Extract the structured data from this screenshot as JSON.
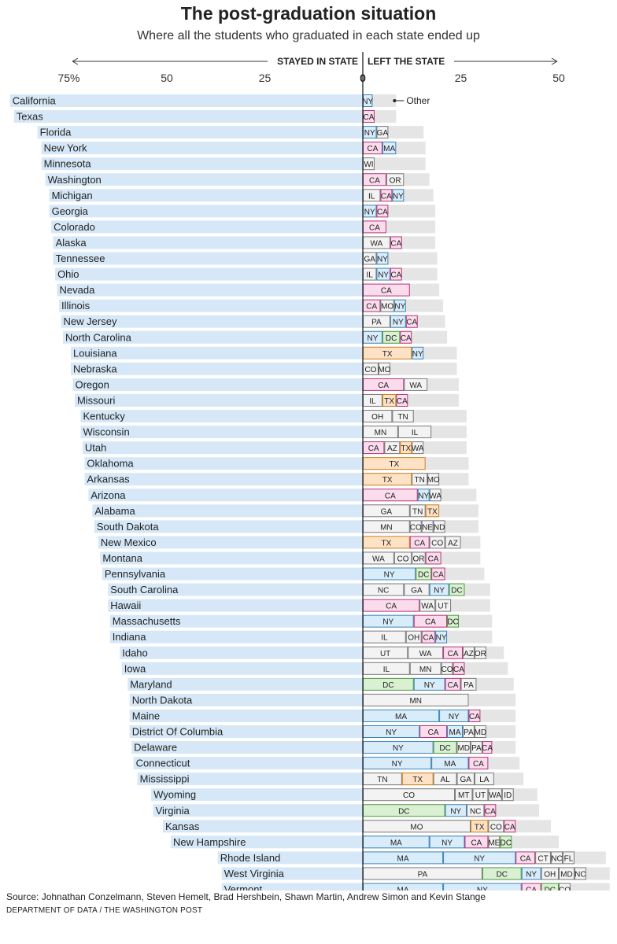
{
  "title": "The post-graduation situation",
  "subtitle": "Where all the students who graduated in each state ended up",
  "source": "Source: Johnathan Conzelmann, Steven Hemelt, Brad Hershbein, Shawn Martin, Andrew Simon and Kevin Stange",
  "credit": "DEPARTMENT OF DATA / THE WASHINGTON POST",
  "colors": {
    "stayed": "#d6e8f7",
    "other": "#e5e5e5",
    "NY": "#d9ecfa",
    "CA": "#fbdcec",
    "DC": "#d9f0d2",
    "TX": "#fde2c6",
    "MA": "#d9ecfa",
    "default": "#f3f3f3",
    "NY_border": "#3c84b8",
    "CA_border": "#b5357e",
    "DC_border": "#4f9a3e",
    "TX_border": "#d17d1a",
    "MA_border": "#3c84b8",
    "default_border": "#7a7a7a"
  },
  "chart_data": {
    "type": "bar",
    "orientation": "diverging-horizontal",
    "xlabel_left": "STAYED IN STATE",
    "xlabel_right": "LEFT THE STATE",
    "ticks_left": [
      "75%",
      "50",
      "25"
    ],
    "tick_zero": "0",
    "ticks_right": [
      "25",
      "50"
    ],
    "xlim_left": [
      0,
      90
    ],
    "xlim_right": [
      0,
      63
    ],
    "other_label": "Other",
    "rows": [
      {
        "state": "California",
        "stayed": 90,
        "left": 8.5,
        "segments": [
          {
            "label": "NY",
            "value": 2.5
          }
        ]
      },
      {
        "state": "Texas",
        "stayed": 89,
        "left": 8.5,
        "segments": [
          {
            "label": "CA",
            "value": 3
          }
        ]
      },
      {
        "state": "Florida",
        "stayed": 83,
        "left": 15.5,
        "segments": [
          {
            "label": "NY",
            "value": 3.5
          },
          {
            "label": "GA",
            "value": 3
          }
        ]
      },
      {
        "state": "New York",
        "stayed": 82,
        "left": 16,
        "segments": [
          {
            "label": "CA",
            "value": 5
          },
          {
            "label": "MA",
            "value": 3.5
          }
        ]
      },
      {
        "state": "Minnesota",
        "stayed": 82,
        "left": 16,
        "segments": [
          {
            "label": "WI",
            "value": 3
          }
        ]
      },
      {
        "state": "Washington",
        "stayed": 81,
        "left": 17,
        "segments": [
          {
            "label": "CA",
            "value": 6
          },
          {
            "label": "OR",
            "value": 4.5
          }
        ]
      },
      {
        "state": "Michigan",
        "stayed": 80,
        "left": 18,
        "segments": [
          {
            "label": "IL",
            "value": 4.5
          },
          {
            "label": "CA",
            "value": 3
          },
          {
            "label": "NY",
            "value": 3
          }
        ]
      },
      {
        "state": "Georgia",
        "stayed": 80,
        "left": 18.5,
        "segments": [
          {
            "label": "NY",
            "value": 3.5
          },
          {
            "label": "CA",
            "value": 3
          }
        ]
      },
      {
        "state": "Colorado",
        "stayed": 79.5,
        "left": 18.5,
        "segments": [
          {
            "label": "CA",
            "value": 6
          }
        ]
      },
      {
        "state": "Alaska",
        "stayed": 79,
        "left": 18.5,
        "segments": [
          {
            "label": "WA",
            "value": 7
          },
          {
            "label": "CA",
            "value": 3
          }
        ]
      },
      {
        "state": "Tennessee",
        "stayed": 79,
        "left": 19,
        "segments": [
          {
            "label": "GA",
            "value": 3.5
          },
          {
            "label": "NY",
            "value": 3
          }
        ]
      },
      {
        "state": "Ohio",
        "stayed": 78.5,
        "left": 19,
        "segments": [
          {
            "label": "IL",
            "value": 3.5
          },
          {
            "label": "NY",
            "value": 3.5
          },
          {
            "label": "CA",
            "value": 3
          }
        ]
      },
      {
        "state": "Nevada",
        "stayed": 78,
        "left": 19.5,
        "segments": [
          {
            "label": "CA",
            "value": 12
          }
        ]
      },
      {
        "state": "Illinois",
        "stayed": 77.5,
        "left": 20.5,
        "segments": [
          {
            "label": "CA",
            "value": 4.5
          },
          {
            "label": "MO",
            "value": 3.5
          },
          {
            "label": "NY",
            "value": 3
          }
        ]
      },
      {
        "state": "New Jersey",
        "stayed": 77,
        "left": 21,
        "segments": [
          {
            "label": "PA",
            "value": 7
          },
          {
            "label": "NY",
            "value": 4
          },
          {
            "label": "CA",
            "value": 3
          }
        ]
      },
      {
        "state": "North Carolina",
        "stayed": 76.5,
        "left": 21.5,
        "segments": [
          {
            "label": "NY",
            "value": 5
          },
          {
            "label": "DC",
            "value": 4.5
          },
          {
            "label": "CA",
            "value": 3
          }
        ]
      },
      {
        "state": "Louisiana",
        "stayed": 74.5,
        "left": 24,
        "segments": [
          {
            "label": "TX",
            "value": 12.5
          },
          {
            "label": "NY",
            "value": 3
          }
        ]
      },
      {
        "state": "Nebraska",
        "stayed": 74.5,
        "left": 24,
        "segments": [
          {
            "label": "CO",
            "value": 4
          },
          {
            "label": "MO",
            "value": 3
          }
        ]
      },
      {
        "state": "Oregon",
        "stayed": 74,
        "left": 24.5,
        "segments": [
          {
            "label": "CA",
            "value": 10.5
          },
          {
            "label": "WA",
            "value": 6
          }
        ]
      },
      {
        "state": "Missouri",
        "stayed": 73.5,
        "left": 24.5,
        "segments": [
          {
            "label": "IL",
            "value": 5
          },
          {
            "label": "TX",
            "value": 3.5
          },
          {
            "label": "CA",
            "value": 3
          }
        ]
      },
      {
        "state": "Kentucky",
        "stayed": 72,
        "left": 26.5,
        "segments": [
          {
            "label": "OH",
            "value": 7.5
          },
          {
            "label": "TN",
            "value": 5.5
          }
        ]
      },
      {
        "state": "Wisconsin",
        "stayed": 72,
        "left": 26.5,
        "segments": [
          {
            "label": "MN",
            "value": 9
          },
          {
            "label": "IL",
            "value": 8.5
          }
        ]
      },
      {
        "state": "Utah",
        "stayed": 71.5,
        "left": 26.5,
        "segments": [
          {
            "label": "CA",
            "value": 5.5
          },
          {
            "label": "AZ",
            "value": 4
          },
          {
            "label": "TX",
            "value": 3
          },
          {
            "label": "WA",
            "value": 3
          }
        ]
      },
      {
        "state": "Oklahoma",
        "stayed": 71,
        "left": 27,
        "segments": [
          {
            "label": "TX",
            "value": 16
          }
        ]
      },
      {
        "state": "Arkansas",
        "stayed": 71,
        "left": 27,
        "segments": [
          {
            "label": "TX",
            "value": 12.5
          },
          {
            "label": "TN",
            "value": 4
          },
          {
            "label": "MO",
            "value": 3
          }
        ]
      },
      {
        "state": "Arizona",
        "stayed": 70,
        "left": 29,
        "segments": [
          {
            "label": "CA",
            "value": 14
          },
          {
            "label": "NY",
            "value": 3
          },
          {
            "label": "WA",
            "value": 3
          }
        ]
      },
      {
        "state": "Alabama",
        "stayed": 69,
        "left": 29.5,
        "segments": [
          {
            "label": "GA",
            "value": 12
          },
          {
            "label": "TN",
            "value": 4
          },
          {
            "label": "TX",
            "value": 3.5
          }
        ]
      },
      {
        "state": "South Dakota",
        "stayed": 68.5,
        "left": 29.5,
        "segments": [
          {
            "label": "MN",
            "value": 12
          },
          {
            "label": "CO",
            "value": 3
          },
          {
            "label": "NE",
            "value": 3
          },
          {
            "label": "ND",
            "value": 3
          }
        ]
      },
      {
        "state": "New Mexico",
        "stayed": 67.5,
        "left": 30,
        "segments": [
          {
            "label": "TX",
            "value": 12
          },
          {
            "label": "CA",
            "value": 5
          },
          {
            "label": "CO",
            "value": 4
          },
          {
            "label": "AZ",
            "value": 4
          }
        ]
      },
      {
        "state": "Montana",
        "stayed": 67,
        "left": 30,
        "segments": [
          {
            "label": "WA",
            "value": 8
          },
          {
            "label": "CO",
            "value": 4.5
          },
          {
            "label": "OR",
            "value": 3.5
          },
          {
            "label": "CA",
            "value": 4
          }
        ]
      },
      {
        "state": "Pennsylvania",
        "stayed": 66.5,
        "left": 31,
        "segments": [
          {
            "label": "NY",
            "value": 13.5
          },
          {
            "label": "DC",
            "value": 4
          },
          {
            "label": "CA",
            "value": 3.5
          }
        ]
      },
      {
        "state": "South Carolina",
        "stayed": 65,
        "left": 32.5,
        "segments": [
          {
            "label": "NC",
            "value": 10.5
          },
          {
            "label": "GA",
            "value": 6.5
          },
          {
            "label": "NY",
            "value": 5
          },
          {
            "label": "DC",
            "value": 4
          }
        ]
      },
      {
        "state": "Hawaii",
        "stayed": 65,
        "left": 32.5,
        "segments": [
          {
            "label": "CA",
            "value": 14.5
          },
          {
            "label": "WA",
            "value": 4
          },
          {
            "label": "UT",
            "value": 4
          }
        ]
      },
      {
        "state": "Massachusetts",
        "stayed": 64.5,
        "left": 33,
        "segments": [
          {
            "label": "NY",
            "value": 13
          },
          {
            "label": "CA",
            "value": 8.5
          },
          {
            "label": "DC",
            "value": 3
          }
        ]
      },
      {
        "state": "Indiana",
        "stayed": 64.5,
        "left": 33,
        "segments": [
          {
            "label": "IL",
            "value": 11
          },
          {
            "label": "OH",
            "value": 4
          },
          {
            "label": "CA",
            "value": 3.5
          },
          {
            "label": "NY",
            "value": 3
          }
        ]
      },
      {
        "state": "Idaho",
        "stayed": 62,
        "left": 36,
        "segments": [
          {
            "label": "UT",
            "value": 11.5
          },
          {
            "label": "WA",
            "value": 9
          },
          {
            "label": "CA",
            "value": 5
          },
          {
            "label": "AZ",
            "value": 3
          },
          {
            "label": "OR",
            "value": 3
          }
        ]
      },
      {
        "state": "Iowa",
        "stayed": 61.5,
        "left": 37,
        "segments": [
          {
            "label": "IL",
            "value": 12
          },
          {
            "label": "MN",
            "value": 8
          },
          {
            "label": "CO",
            "value": 3
          },
          {
            "label": "CA",
            "value": 3
          }
        ]
      },
      {
        "state": "Maryland",
        "stayed": 60,
        "left": 38.5,
        "segments": [
          {
            "label": "DC",
            "value": 13
          },
          {
            "label": "NY",
            "value": 8
          },
          {
            "label": "CA",
            "value": 4
          },
          {
            "label": "PA",
            "value": 4
          }
        ]
      },
      {
        "state": "North Dakota",
        "stayed": 59.5,
        "left": 39,
        "segments": [
          {
            "label": "MN",
            "value": 27
          }
        ]
      },
      {
        "state": "Maine",
        "stayed": 59.5,
        "left": 39,
        "segments": [
          {
            "label": "MA",
            "value": 19.5
          },
          {
            "label": "NY",
            "value": 7.5
          },
          {
            "label": "CA",
            "value": 3
          }
        ]
      },
      {
        "state": "District Of Columbia",
        "stayed": 59.5,
        "left": 39,
        "segments": [
          {
            "label": "NY",
            "value": 14.5
          },
          {
            "label": "CA",
            "value": 7
          },
          {
            "label": "MA",
            "value": 4
          },
          {
            "label": "PA",
            "value": 3
          },
          {
            "label": "MD",
            "value": 3
          }
        ]
      },
      {
        "state": "Delaware",
        "stayed": 59,
        "left": 39,
        "segments": [
          {
            "label": "NY",
            "value": 18
          },
          {
            "label": "DC",
            "value": 6
          },
          {
            "label": "MD",
            "value": 3.5
          },
          {
            "label": "PA",
            "value": 3
          },
          {
            "label": "CA",
            "value": 2.5
          }
        ]
      },
      {
        "state": "Connecticut",
        "stayed": 58.5,
        "left": 40,
        "segments": [
          {
            "label": "NY",
            "value": 17.5
          },
          {
            "label": "MA",
            "value": 9.5
          },
          {
            "label": "CA",
            "value": 5
          }
        ]
      },
      {
        "state": "Mississippi",
        "stayed": 57.5,
        "left": 41,
        "segments": [
          {
            "label": "TN",
            "value": 10
          },
          {
            "label": "TX",
            "value": 8
          },
          {
            "label": "AL",
            "value": 6
          },
          {
            "label": "GA",
            "value": 4.5
          },
          {
            "label": "LA",
            "value": 5
          }
        ]
      },
      {
        "state": "Wyoming",
        "stayed": 54,
        "left": 44.5,
        "segments": [
          {
            "label": "CO",
            "value": 23.5
          },
          {
            "label": "MT",
            "value": 4.5
          },
          {
            "label": "UT",
            "value": 4
          },
          {
            "label": "WA",
            "value": 3.5
          },
          {
            "label": "ID",
            "value": 3
          }
        ]
      },
      {
        "state": "Virginia",
        "stayed": 53.5,
        "left": 45,
        "segments": [
          {
            "label": "DC",
            "value": 21
          },
          {
            "label": "NY",
            "value": 5.5
          },
          {
            "label": "NC",
            "value": 4.5
          },
          {
            "label": "CA",
            "value": 3
          }
        ]
      },
      {
        "state": "Kansas",
        "stayed": 51,
        "left": 48,
        "segments": [
          {
            "label": "MO",
            "value": 27.5
          },
          {
            "label": "TX",
            "value": 4.5
          },
          {
            "label": "CO",
            "value": 4
          },
          {
            "label": "CA",
            "value": 3
          }
        ]
      },
      {
        "state": "New Hampshire",
        "stayed": 49,
        "left": 50,
        "segments": [
          {
            "label": "MA",
            "value": 17
          },
          {
            "label": "NY",
            "value": 9
          },
          {
            "label": "CA",
            "value": 6
          },
          {
            "label": "ME",
            "value": 3
          },
          {
            "label": "DC",
            "value": 3
          }
        ]
      },
      {
        "state": "Rhode Island",
        "stayed": 37,
        "left": 62,
        "segments": [
          {
            "label": "MA",
            "value": 20.5
          },
          {
            "label": "NY",
            "value": 18.5
          },
          {
            "label": "CA",
            "value": 5
          },
          {
            "label": "CT",
            "value": 4
          },
          {
            "label": "NC",
            "value": 3
          },
          {
            "label": "FL",
            "value": 3
          }
        ]
      },
      {
        "state": "West Virginia",
        "stayed": 36,
        "left": 63,
        "segments": [
          {
            "label": "PA",
            "value": 30.5
          },
          {
            "label": "DC",
            "value": 10
          },
          {
            "label": "NY",
            "value": 5
          },
          {
            "label": "OH",
            "value": 4.5
          },
          {
            "label": "MD",
            "value": 4
          },
          {
            "label": "NC",
            "value": 3
          }
        ]
      },
      {
        "state": "Vermont",
        "stayed": 36,
        "left": 63,
        "segments": [
          {
            "label": "MA",
            "value": 20.5
          },
          {
            "label": "NY",
            "value": 20
          },
          {
            "label": "CA",
            "value": 5
          },
          {
            "label": "DC",
            "value": 4.5
          },
          {
            "label": "CO",
            "value": 3
          }
        ]
      }
    ]
  }
}
